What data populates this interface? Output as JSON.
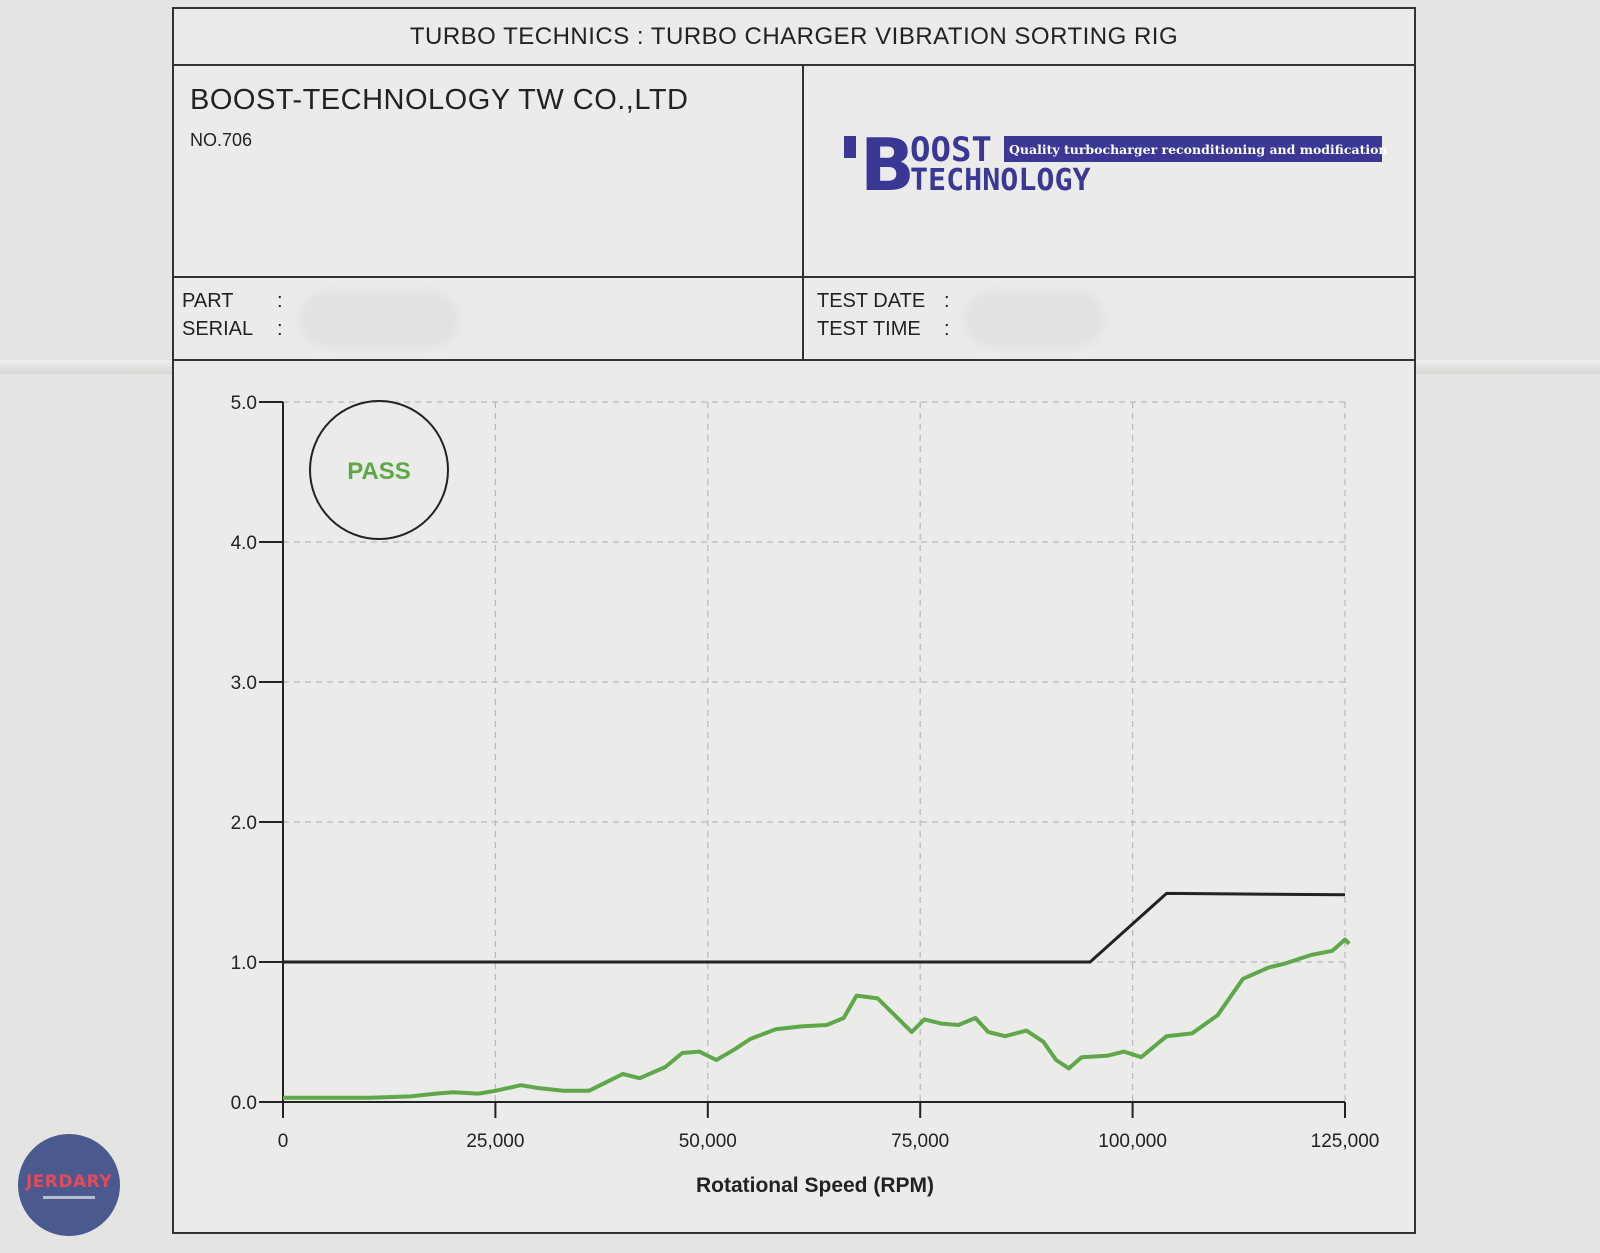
{
  "header": {
    "title": "TURBO TECHNICS : TURBO CHARGER VIBRATION SORTING RIG",
    "company_name": "BOOST-TECHNOLOGY TW CO.,LTD",
    "company_no": "NO.706"
  },
  "logo": {
    "word1": "OOST",
    "word2": "TECHNOLOGY",
    "initial": "B",
    "tagline": "Quality turbocharger reconditioning and modification",
    "color": "#3a3894"
  },
  "info": {
    "part_label": "PART",
    "serial_label": "SERIAL",
    "test_date_label": "TEST DATE",
    "test_time_label": "TEST TIME",
    "colon": ":"
  },
  "stamp": {
    "text": "PASS",
    "color": "#5fa84a"
  },
  "watermark": {
    "text": "JERDARY"
  },
  "chart_data": {
    "type": "line",
    "title": "",
    "xlabel": "Rotational Speed (RPM)",
    "ylabel": "",
    "xlim": [
      0,
      125000
    ],
    "ylim": [
      0,
      5
    ],
    "x_ticks": [
      0,
      25000,
      50000,
      75000,
      100000,
      125000
    ],
    "x_tick_labels": [
      "0",
      "25,000",
      "50,000",
      "75,000",
      "100,000",
      "125,000"
    ],
    "y_ticks": [
      0,
      1,
      2,
      3,
      4,
      5
    ],
    "y_tick_labels": [
      "0.0",
      "1.0",
      "2.0",
      "3.0",
      "4.0",
      "5.0"
    ],
    "grid": true,
    "series": [
      {
        "role": "limit",
        "color": "#222222",
        "points": [
          [
            0,
            1.0
          ],
          [
            95000,
            1.0
          ],
          [
            104000,
            1.49
          ],
          [
            125000,
            1.48
          ]
        ]
      },
      {
        "role": "measured",
        "color": "#5fa84a",
        "points": [
          [
            0,
            0.03
          ],
          [
            5000,
            0.03
          ],
          [
            10000,
            0.03
          ],
          [
            15000,
            0.04
          ],
          [
            18000,
            0.06
          ],
          [
            20000,
            0.07
          ],
          [
            23000,
            0.06
          ],
          [
            25000,
            0.08
          ],
          [
            28000,
            0.12
          ],
          [
            30000,
            0.1
          ],
          [
            33000,
            0.08
          ],
          [
            36000,
            0.08
          ],
          [
            38000,
            0.14
          ],
          [
            40000,
            0.2
          ],
          [
            42000,
            0.17
          ],
          [
            45000,
            0.25
          ],
          [
            47000,
            0.35
          ],
          [
            49000,
            0.36
          ],
          [
            51000,
            0.3
          ],
          [
            53000,
            0.37
          ],
          [
            55000,
            0.45
          ],
          [
            58000,
            0.52
          ],
          [
            61000,
            0.54
          ],
          [
            64000,
            0.55
          ],
          [
            66000,
            0.6
          ],
          [
            67500,
            0.76
          ],
          [
            70000,
            0.74
          ],
          [
            72000,
            0.62
          ],
          [
            74000,
            0.5
          ],
          [
            75500,
            0.59
          ],
          [
            77500,
            0.56
          ],
          [
            79500,
            0.55
          ],
          [
            81500,
            0.6
          ],
          [
            83000,
            0.5
          ],
          [
            85000,
            0.47
          ],
          [
            87500,
            0.51
          ],
          [
            89500,
            0.43
          ],
          [
            91000,
            0.3
          ],
          [
            92500,
            0.24
          ],
          [
            94000,
            0.32
          ],
          [
            97000,
            0.33
          ],
          [
            99000,
            0.36
          ],
          [
            101000,
            0.32
          ],
          [
            104000,
            0.47
          ],
          [
            107000,
            0.49
          ],
          [
            110000,
            0.62
          ],
          [
            113000,
            0.88
          ],
          [
            116000,
            0.96
          ],
          [
            118000,
            0.99
          ],
          [
            121000,
            1.05
          ],
          [
            123500,
            1.08
          ],
          [
            125000,
            1.16
          ],
          [
            125500,
            1.13
          ]
        ]
      }
    ]
  }
}
